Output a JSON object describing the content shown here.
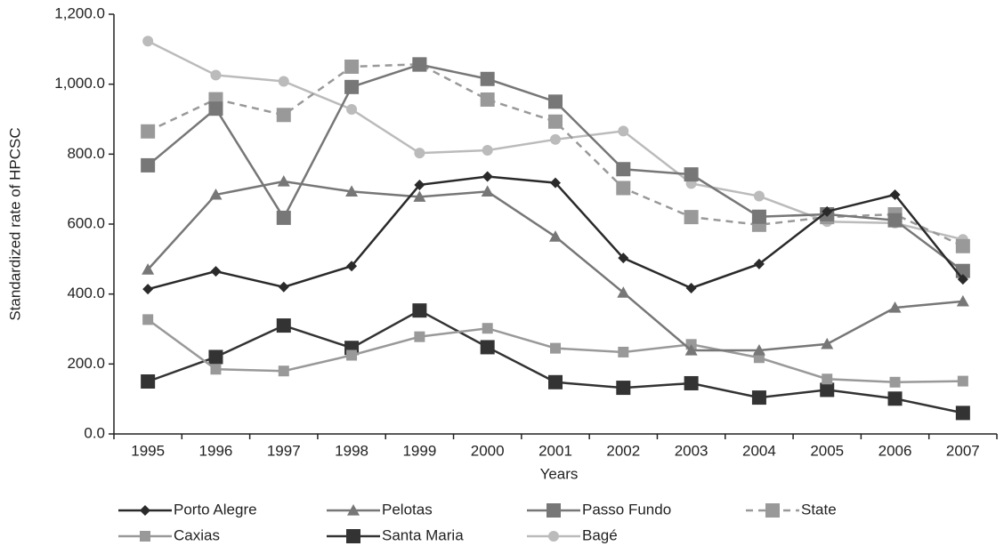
{
  "chart_data": {
    "type": "line",
    "ylabel": "Standardized rate of HPCSC",
    "xlabel": "Years",
    "categories": [
      "1995",
      "1996",
      "1997",
      "1998",
      "1999",
      "2000",
      "2001",
      "2002",
      "2003",
      "2004",
      "2005",
      "2006",
      "2007"
    ],
    "ylim": [
      0,
      1200
    ],
    "yticks": [
      {
        "value": 0,
        "label": "0.0"
      },
      {
        "value": 200,
        "label": "200.0"
      },
      {
        "value": 400,
        "label": "400.0"
      },
      {
        "value": 600,
        "label": "600.0"
      },
      {
        "value": 800,
        "label": "800.0"
      },
      {
        "value": 1000,
        "label": "1,000.0"
      },
      {
        "value": 1200,
        "label": "1,200.0"
      }
    ],
    "series": [
      {
        "name": "Porto Alegre",
        "color": "#2a2a2a",
        "marker": "diamond",
        "marker_size": 6,
        "dashed": false,
        "values": [
          414,
          465,
          420,
          480,
          712,
          736,
          718,
          503,
          417,
          486,
          636,
          684,
          442
        ]
      },
      {
        "name": "Pelotas",
        "color": "#777777",
        "marker": "triangle",
        "marker_size": 7,
        "dashed": false,
        "values": [
          470,
          684,
          722,
          693,
          678,
          693,
          564,
          404,
          239,
          239,
          257,
          361,
          379
        ]
      },
      {
        "name": "Passo Fundo",
        "color": "#777777",
        "marker": "square",
        "marker_size": 8,
        "dashed": false,
        "values": [
          768,
          930,
          618,
          992,
          1056,
          1015,
          950,
          757,
          742,
          621,
          628,
          611,
          466
        ]
      },
      {
        "name": "State",
        "color": "#999999",
        "marker": "square",
        "marker_size": 8,
        "dashed": true,
        "values": [
          865,
          957,
          912,
          1050,
          1057,
          956,
          893,
          703,
          620,
          598,
          620,
          628,
          537
        ]
      },
      {
        "name": "Caxias",
        "color": "#999999",
        "marker": "square",
        "marker_size": 6,
        "dashed": false,
        "values": [
          327,
          185,
          180,
          225,
          278,
          302,
          245,
          234,
          256,
          218,
          157,
          148,
          151
        ]
      },
      {
        "name": "Santa Maria",
        "color": "#333333",
        "marker": "square",
        "marker_size": 8,
        "dashed": false,
        "values": [
          150,
          220,
          310,
          246,
          353,
          248,
          148,
          132,
          145,
          104,
          126,
          101,
          60
        ]
      },
      {
        "name": "Bagé",
        "color": "#bbbbbb",
        "marker": "circle",
        "marker_size": 6,
        "dashed": false,
        "values": [
          1123,
          1026,
          1008,
          928,
          803,
          811,
          842,
          866,
          716,
          680,
          607,
          603,
          556
        ]
      }
    ]
  }
}
